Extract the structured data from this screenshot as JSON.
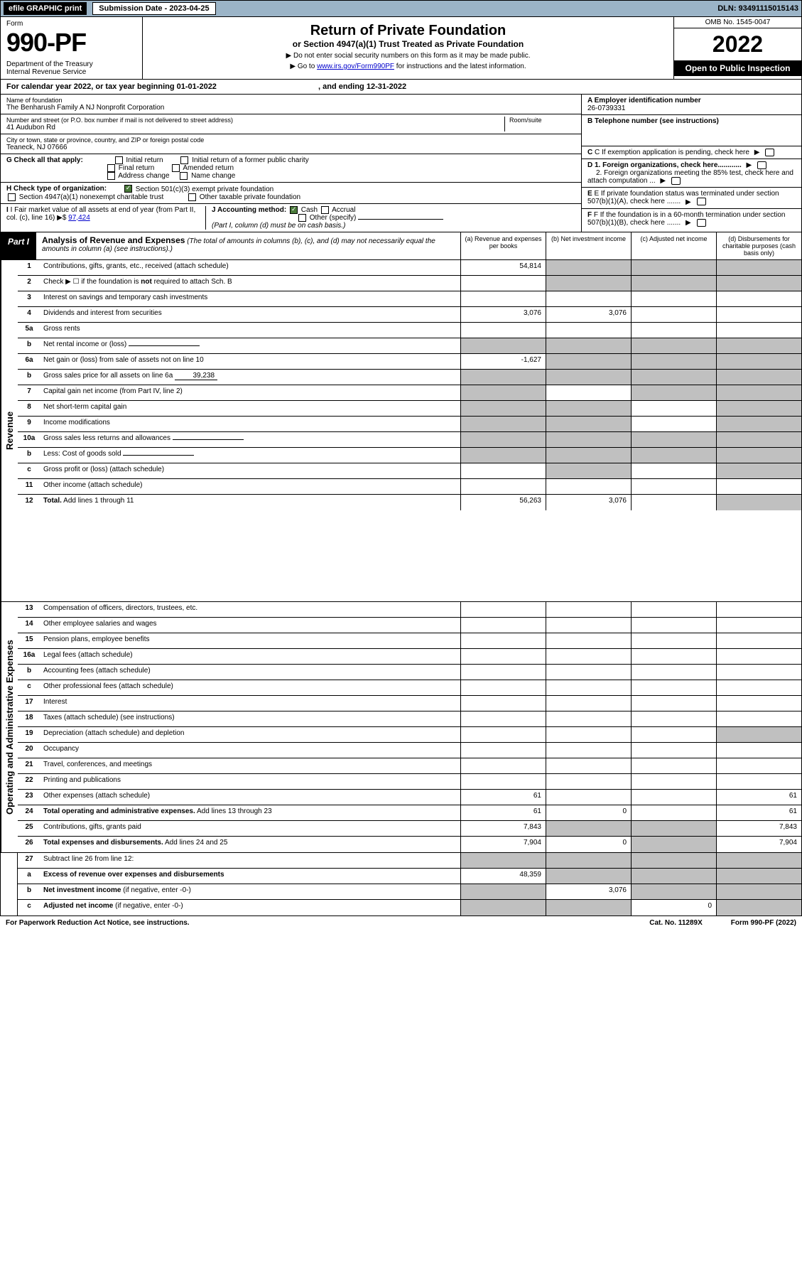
{
  "topbar": {
    "efile": "efile GRAPHIC print",
    "submission": "Submission Date - 2023-04-25",
    "dln": "DLN: 93491115015143"
  },
  "header": {
    "form_label": "Form",
    "form_num": "990-PF",
    "dept": "Department of the Treasury\nInternal Revenue Service",
    "title": "Return of Private Foundation",
    "subtitle": "or Section 4947(a)(1) Trust Treated as Private Foundation",
    "instruct1": "▶ Do not enter social security numbers on this form as it may be made public.",
    "instruct2_pre": "▶ Go to ",
    "instruct2_link": "www.irs.gov/Form990PF",
    "instruct2_post": " for instructions and the latest information.",
    "omb": "OMB No. 1545-0047",
    "year": "2022",
    "open_public": "Open to Public Inspection"
  },
  "cal_year": {
    "text_pre": "For calendar year 2022, or tax year beginning ",
    "begin": "01-01-2022",
    "mid": " , and ending ",
    "end": "12-31-2022"
  },
  "info": {
    "name_label": "Name of foundation",
    "name": "The Benharush Family A NJ Nonprofit Corporation",
    "addr_label": "Number and street (or P.O. box number if mail is not delivered to street address)",
    "addr": "41 Audubon Rd",
    "room_label": "Room/suite",
    "city_label": "City or town, state or province, country, and ZIP or foreign postal code",
    "city": "Teaneck, NJ  07666",
    "ein_label": "A Employer identification number",
    "ein": "26-0739331",
    "phone_label": "B Telephone number (see instructions)",
    "c_label": "C If exemption application is pending, check here",
    "g_label": "G Check all that apply:",
    "g_opts": [
      "Initial return",
      "Initial return of a former public charity",
      "Final return",
      "Amended return",
      "Address change",
      "Name change"
    ],
    "d1": "D 1. Foreign organizations, check here............",
    "d2": "2. Foreign organizations meeting the 85% test, check here and attach computation ...",
    "h_label": "H Check type of organization:",
    "h_opt1": "Section 501(c)(3) exempt private foundation",
    "h_opt2": "Section 4947(a)(1) nonexempt charitable trust",
    "h_opt3": "Other taxable private foundation",
    "e_label": "E If private foundation status was terminated under section 507(b)(1)(A), check here .......",
    "i_label": "I Fair market value of all assets at end of year (from Part II, col. (c), line 16)",
    "i_val": "97,424",
    "j_label": "J Accounting method:",
    "j_cash": "Cash",
    "j_accrual": "Accrual",
    "j_other": "Other (specify)",
    "j_note": "(Part I, column (d) must be on cash basis.)",
    "f_label": "F If the foundation is in a 60-month termination under section 507(b)(1)(B), check here ......."
  },
  "part1": {
    "label": "Part I",
    "title": "Analysis of Revenue and Expenses",
    "title_note": "(The total of amounts in columns (b), (c), and (d) may not necessarily equal the amounts in column (a) (see instructions).)",
    "cols": {
      "a": "(a) Revenue and expenses per books",
      "b": "(b) Net investment income",
      "c": "(c) Adjusted net income",
      "d": "(d) Disbursements for charitable purposes (cash basis only)"
    }
  },
  "sections": {
    "revenue": "Revenue",
    "expenses": "Operating and Administrative Expenses"
  },
  "rows": [
    {
      "n": "1",
      "d": "Contributions, gifts, grants, etc., received (attach schedule)",
      "a": "54,814",
      "grey_bcd": true
    },
    {
      "n": "2",
      "d": "Check ▶ ☐ if the foundation is <b>not</b> required to attach Sch. B",
      "no_cells": true,
      "grey_bcd": true
    },
    {
      "n": "3",
      "d": "Interest on savings and temporary cash investments"
    },
    {
      "n": "4",
      "d": "Dividends and interest from securities",
      "a": "3,076",
      "b": "3,076"
    },
    {
      "n": "5a",
      "d": "Gross rents"
    },
    {
      "n": "b",
      "d": "Net rental income or (loss)",
      "inline": true,
      "grey_all": true
    },
    {
      "n": "6a",
      "d": "Net gain or (loss) from sale of assets not on line 10",
      "a": "-1,627",
      "grey_bcd": true
    },
    {
      "n": "b",
      "d": "Gross sales price for all assets on line 6a",
      "inline_val": "39,238",
      "grey_all": true
    },
    {
      "n": "7",
      "d": "Capital gain net income (from Part IV, line 2)",
      "grey_a": true,
      "grey_cd": true
    },
    {
      "n": "8",
      "d": "Net short-term capital gain",
      "grey_ab": true,
      "grey_d": true
    },
    {
      "n": "9",
      "d": "Income modifications",
      "grey_ab": true,
      "grey_d": true
    },
    {
      "n": "10a",
      "d": "Gross sales less returns and allowances",
      "inline": true,
      "grey_all": true
    },
    {
      "n": "b",
      "d": "Less: Cost of goods sold",
      "inline": true,
      "grey_all": true
    },
    {
      "n": "c",
      "d": "Gross profit or (loss) (attach schedule)",
      "grey_b": true,
      "grey_d": true
    },
    {
      "n": "11",
      "d": "Other income (attach schedule)"
    },
    {
      "n": "12",
      "d": "<b>Total.</b> Add lines 1 through 11",
      "a": "56,263",
      "b": "3,076",
      "grey_d": true
    },
    {
      "n": "13",
      "d": "Compensation of officers, directors, trustees, etc.",
      "sec": "exp"
    },
    {
      "n": "14",
      "d": "Other employee salaries and wages"
    },
    {
      "n": "15",
      "d": "Pension plans, employee benefits"
    },
    {
      "n": "16a",
      "d": "Legal fees (attach schedule)"
    },
    {
      "n": "b",
      "d": "Accounting fees (attach schedule)"
    },
    {
      "n": "c",
      "d": "Other professional fees (attach schedule)"
    },
    {
      "n": "17",
      "d": "Interest"
    },
    {
      "n": "18",
      "d": "Taxes (attach schedule) (see instructions)"
    },
    {
      "n": "19",
      "d": "Depreciation (attach schedule) and depletion",
      "grey_d": true
    },
    {
      "n": "20",
      "d": "Occupancy"
    },
    {
      "n": "21",
      "d": "Travel, conferences, and meetings"
    },
    {
      "n": "22",
      "d": "Printing and publications"
    },
    {
      "n": "23",
      "d": "Other expenses (attach schedule)",
      "a": "61",
      "d_v": "61"
    },
    {
      "n": "24",
      "d": "<b>Total operating and administrative expenses.</b> Add lines 13 through 23",
      "a": "61",
      "b": "0",
      "d_v": "61"
    },
    {
      "n": "25",
      "d": "Contributions, gifts, grants paid",
      "a": "7,843",
      "grey_bc": true,
      "d_v": "7,843"
    },
    {
      "n": "26",
      "d": "<b>Total expenses and disbursements.</b> Add lines 24 and 25",
      "a": "7,904",
      "b": "0",
      "grey_c": true,
      "d_v": "7,904"
    },
    {
      "n": "27",
      "d": "Subtract line 26 from line 12:",
      "grey_all": true,
      "sec": "bottom"
    },
    {
      "n": "a",
      "d": "<b>Excess of revenue over expenses and disbursements</b>",
      "a": "48,359",
      "grey_bcd": true
    },
    {
      "n": "b",
      "d": "<b>Net investment income</b> (if negative, enter -0-)",
      "grey_a": true,
      "b": "3,076",
      "grey_cd": true
    },
    {
      "n": "c",
      "d": "<b>Adjusted net income</b> (if negative, enter -0-)",
      "grey_ab": true,
      "c": "0",
      "grey_d": true
    }
  ],
  "footer": {
    "left": "For Paperwork Reduction Act Notice, see instructions.",
    "mid": "Cat. No. 11289X",
    "right": "Form 990-PF (2022)"
  }
}
